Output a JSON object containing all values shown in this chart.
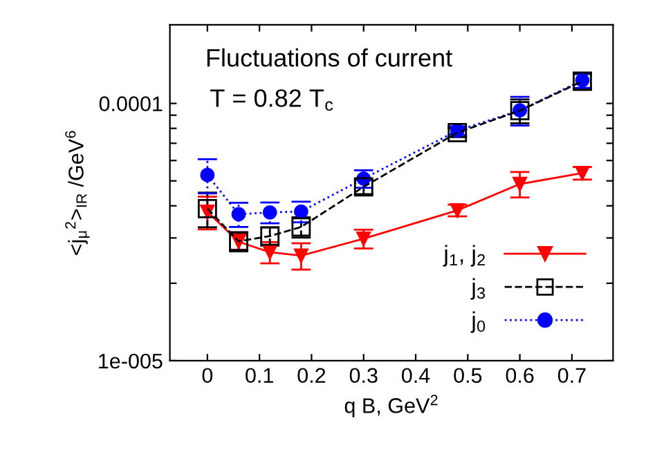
{
  "chart_data": {
    "type": "line",
    "xlabel": "q B, GeV$^{2}$",
    "ylabel": "<j$_{μ}$$^{2}$>$_{IR}$ /GeV$^{6}$",
    "annotations": [
      "Fluctuations of current",
      "T = 0.82 T$_{c}$"
    ],
    "x": [
      0,
      0.06,
      0.12,
      0.18,
      0.3,
      0.48,
      0.6,
      0.72
    ],
    "series": [
      {
        "name": "j$_{1}$, j$_{2}$",
        "color": "#ff0000",
        "marker": "triangle",
        "line_style": "solid",
        "values": [
          3.79e-05,
          2.9e-05,
          2.64e-05,
          2.56e-05,
          2.98e-05,
          3.84e-05,
          4.86e-05,
          5.36e-05
        ],
        "errors": [
          5.5e-06,
          2e-06,
          2.5e-06,
          3e-06,
          2.5e-06,
          2e-06,
          5.5e-06,
          3e-06
        ]
      },
      {
        "name": "j$_{3}$",
        "color": "#000000",
        "marker": "square",
        "line_style": "dashed",
        "values": [
          3.9e-05,
          2.91e-05,
          3.05e-05,
          3.31e-05,
          4.74e-05,
          7.7e-05,
          9.37e-05,
          0.000122
        ],
        "errors": [
          6e-06,
          2.5e-06,
          2.5e-06,
          3e-06,
          3e-06,
          3e-06,
          1e-05,
          8e-06
        ]
      },
      {
        "name": "j$_{0}$",
        "color": "#0000ff",
        "marker": "circle",
        "line_style": "dotted",
        "values": [
          5.27e-05,
          3.71e-05,
          3.77e-05,
          3.8e-05,
          5.1e-05,
          7.84e-05,
          9.4e-05,
          0.000123
        ],
        "errors": [
          8e-06,
          4e-06,
          3.5e-06,
          3.5e-06,
          4e-06,
          3e-06,
          1.2e-05,
          8e-06
        ]
      }
    ],
    "log": "y",
    "xlim": [
      -0.072,
      0.779
    ],
    "ylim": [
      1e-05,
      0.000202
    ],
    "xticks": [
      0,
      0.1,
      0.2,
      0.3,
      0.4,
      0.5,
      0.6,
      0.7
    ],
    "yticks": [
      {
        "value": 1e-05,
        "label": "1e-005"
      },
      {
        "value": 2e-05,
        "label": null
      },
      {
        "value": 3e-05,
        "label": null
      },
      {
        "value": 4e-05,
        "label": null
      },
      {
        "value": 5e-05,
        "label": null
      },
      {
        "value": 6e-05,
        "label": null
      },
      {
        "value": 7e-05,
        "label": null
      },
      {
        "value": 8e-05,
        "label": null
      },
      {
        "value": 9e-05,
        "label": null
      },
      0.0001
    ],
    "grid": false,
    "legend": "bottom right"
  }
}
